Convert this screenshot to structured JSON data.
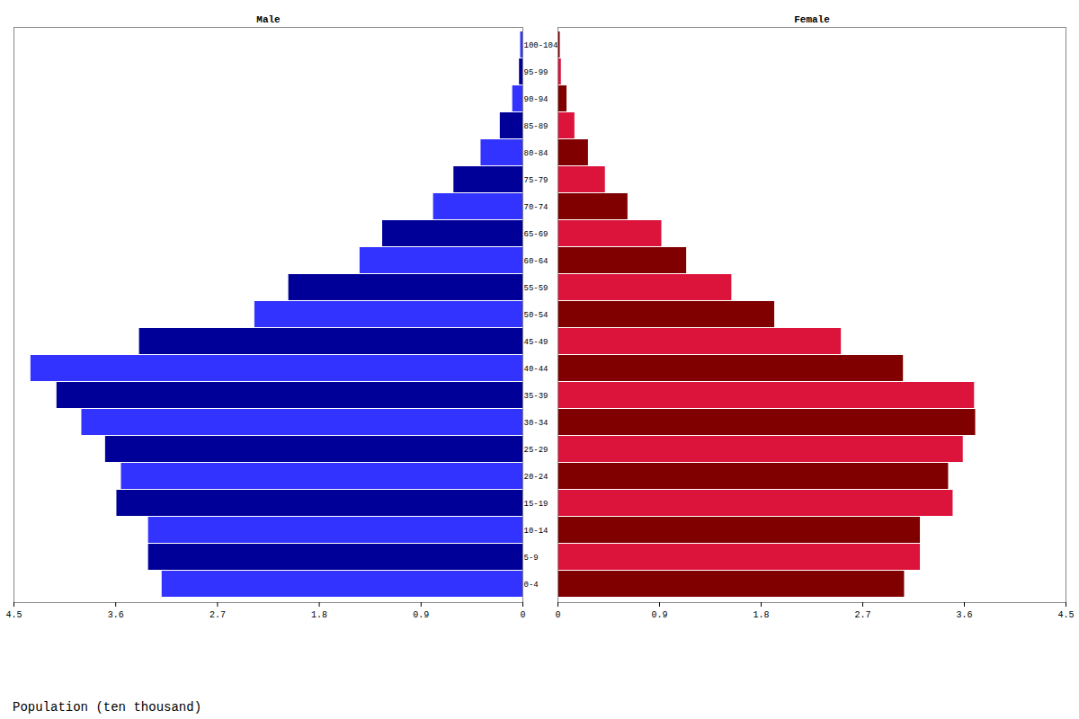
{
  "chart_data": [
    {
      "type": "bar",
      "orientation": "horizontal",
      "title": "Male",
      "xlabel": "Population (ten thousand)",
      "categories": [
        "0-4",
        "5-9",
        "10-14",
        "15-19",
        "20-24",
        "25-29",
        "30-34",
        "35-39",
        "40-44",
        "45-49",
        "50-54",
        "55-59",
        "60-64",
        "65-69",
        "70-74",
        "75-79",
        "80-84",
        "85-89",
        "90-94",
        "95-99",
        "100-104"
      ],
      "values": [
        3.19,
        3.31,
        3.31,
        3.59,
        3.55,
        3.69,
        3.9,
        4.12,
        4.35,
        3.39,
        2.37,
        2.07,
        1.44,
        1.24,
        0.79,
        0.61,
        0.37,
        0.2,
        0.09,
        0.03,
        0.02
      ],
      "colors": [
        "#3333ff",
        "#000099",
        "#3333ff",
        "#000099",
        "#3333ff",
        "#000099",
        "#3333ff",
        "#000099",
        "#3333ff",
        "#000099",
        "#3333ff",
        "#000099",
        "#3333ff",
        "#000099",
        "#3333ff",
        "#000099",
        "#3333ff",
        "#000099",
        "#3333ff",
        "#000099",
        "#3333ff"
      ],
      "xlim": [
        4.5,
        0
      ],
      "xticks": [
        4.5,
        3.6,
        2.7,
        1.8,
        0.9,
        0
      ]
    },
    {
      "type": "bar",
      "orientation": "horizontal",
      "title": "Female",
      "categories": [
        "0-4",
        "5-9",
        "10-14",
        "15-19",
        "20-24",
        "25-29",
        "30-34",
        "35-39",
        "40-44",
        "45-49",
        "50-54",
        "55-59",
        "60-64",
        "65-69",
        "70-74",
        "75-79",
        "80-84",
        "85-89",
        "90-94",
        "95-99",
        "100-104"
      ],
      "values": [
        3.07,
        3.21,
        3.21,
        3.5,
        3.46,
        3.59,
        3.7,
        3.69,
        3.06,
        2.51,
        1.92,
        1.54,
        1.14,
        0.92,
        0.62,
        0.42,
        0.27,
        0.15,
        0.08,
        0.03,
        0.02
      ],
      "colors": [
        "#800000",
        "#dc143c",
        "#800000",
        "#dc143c",
        "#800000",
        "#dc143c",
        "#800000",
        "#dc143c",
        "#800000",
        "#dc143c",
        "#800000",
        "#dc143c",
        "#800000",
        "#dc143c",
        "#800000",
        "#dc143c",
        "#800000",
        "#dc143c",
        "#800000",
        "#dc143c",
        "#800000"
      ],
      "xlim": [
        0,
        4.5
      ],
      "xticks": [
        0,
        0.9,
        1.8,
        2.7,
        3.6,
        4.5
      ]
    }
  ]
}
